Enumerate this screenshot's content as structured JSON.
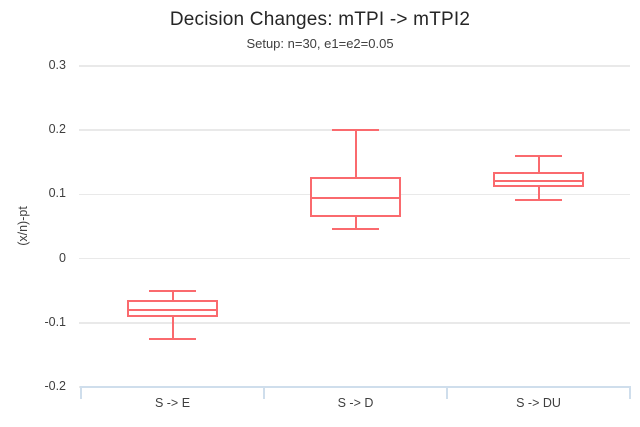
{
  "chart": {
    "title": "Decision Changes: mTPI -> mTPI2",
    "subtitle": "Setup: n=30, e1=e2=0.05"
  },
  "chart_data": {
    "type": "box",
    "title": "Decision Changes: mTPI -> mTPI2",
    "subtitle": "Setup: n=30, e1=e2=0.05",
    "categories": [
      "S -> E",
      "S -> D",
      "S -> DU"
    ],
    "series": [
      {
        "name": "S -> E",
        "min": -0.125,
        "q1": -0.09,
        "median": -0.08,
        "q3": -0.066,
        "max": -0.051
      },
      {
        "name": "S -> D",
        "min": 0.046,
        "q1": 0.067,
        "median": 0.095,
        "q3": 0.126,
        "max": 0.2
      },
      {
        "name": "S -> DU",
        "min": 0.091,
        "q1": 0.113,
        "median": 0.121,
        "q3": 0.133,
        "max": 0.16
      }
    ],
    "xlabel": "",
    "ylabel": "(x/n)-pt",
    "ylim": [
      -0.2,
      0.3
    ],
    "y_tick_values": [
      0.3,
      0.2,
      0.1,
      0,
      -0.1,
      -0.2
    ],
    "y_tick_labels": [
      "0.3",
      "0.2",
      "0.1",
      "0",
      "-0.1",
      "-0.2"
    ],
    "grid": "horizontal",
    "legend": "none",
    "colors": {
      "box_stroke": "#fa6a6e",
      "box_fill": "#ffffff",
      "gridline": "#e9e9e9",
      "axis_line": "#cfdeec",
      "title_text": "#262626",
      "subtitle_text": "#404040",
      "tick_text": "#3f3f3f"
    }
  }
}
